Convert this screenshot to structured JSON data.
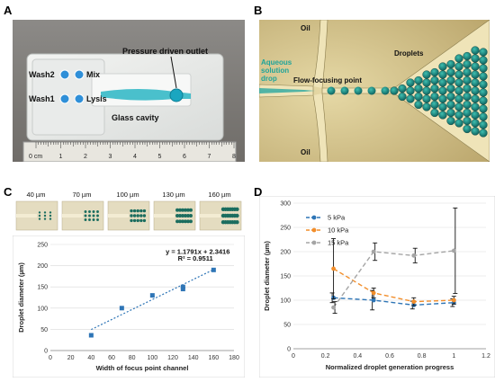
{
  "panels": {
    "A": {
      "letter": "A",
      "labels": {
        "wash2": "Wash2",
        "mix": "Mix",
        "wash1": "Wash1",
        "lysis": "Lysis",
        "outlet": "Pressure driven outlet",
        "cavity": "Glass cavity"
      },
      "ruler_ticks": [
        "0 cm",
        "1",
        "2",
        "3",
        "4",
        "5",
        "6",
        "7",
        "8"
      ]
    },
    "B": {
      "letter": "B",
      "labels": {
        "oil_top": "Oil",
        "oil_bottom": "Oil",
        "aqueous": "Aqueous solution drop",
        "flow_focus": "Flow-focusing point",
        "droplets": "Droplets"
      }
    },
    "C": {
      "letter": "C",
      "widths": [
        "40 µm",
        "70 µm",
        "100 µm",
        "130 µm",
        "160 µm"
      ],
      "chart_data": {
        "type": "scatter",
        "xlabel": "Width of focus point channel",
        "ylabel": "Droplet diameter (µm)",
        "xlim": [
          0,
          180
        ],
        "ylim": [
          0,
          250
        ],
        "xticks": [
          "0",
          "20",
          "40",
          "60",
          "80",
          "100",
          "120",
          "140",
          "160",
          "180"
        ],
        "yticks": [
          "0",
          "50",
          "100",
          "150",
          "200",
          "250"
        ],
        "series": [
          {
            "values": [
              {
                "x": 40,
                "y": 36
              },
              {
                "x": 70,
                "y": 100
              },
              {
                "x": 100,
                "y": 130
              },
              {
                "x": 130,
                "y": 145
              },
              {
                "x": 130,
                "y": 150
              },
              {
                "x": 160,
                "y": 190
              }
            ]
          }
        ],
        "trendline": {
          "slope": 1.1791,
          "intercept": 2.3416
        },
        "annotation_eq": "y = 1.1791x + 2.3416",
        "annotation_r2": "R² = 0.9511",
        "point_color": "#2e75b6",
        "trend_color": "#2e75b6",
        "grid": true
      }
    },
    "D": {
      "letter": "D",
      "chart_data": {
        "type": "line",
        "xlabel": "Normalized droplet generation progress",
        "ylabel": "Droplet diameter (µm)",
        "xlim": [
          0,
          1.2
        ],
        "ylim": [
          0,
          300
        ],
        "xticks": [
          "0",
          "0.2",
          "0.4",
          "0.6",
          "0.8",
          "1",
          "1.2"
        ],
        "yticks": [
          "0",
          "50",
          "100",
          "150",
          "200",
          "250",
          "300"
        ],
        "legend_position": "top-left",
        "grid": true,
        "series": [
          {
            "name": "5 kPa",
            "color": "#2e75b6",
            "x": [
              0.25,
              0.5,
              0.75,
              1.0
            ],
            "y": [
              105,
              100,
              90,
              95
            ],
            "err": [
              10,
              20,
              8,
              8
            ]
          },
          {
            "name": "10 kPa",
            "color": "#f28e2b",
            "x": [
              0.25,
              0.5,
              0.75,
              1.0
            ],
            "y": [
              165,
              115,
              97,
              100
            ],
            "err": [
              62,
              10,
              8,
              8
            ]
          },
          {
            "name": "15 kPa",
            "color": "#a5a5a5",
            "x": [
              0.25,
              0.5,
              0.75,
              1.0
            ],
            "y": [
              85,
              200,
              192,
              202
            ],
            "err": [
              12,
              18,
              15,
              88
            ]
          }
        ]
      }
    }
  }
}
